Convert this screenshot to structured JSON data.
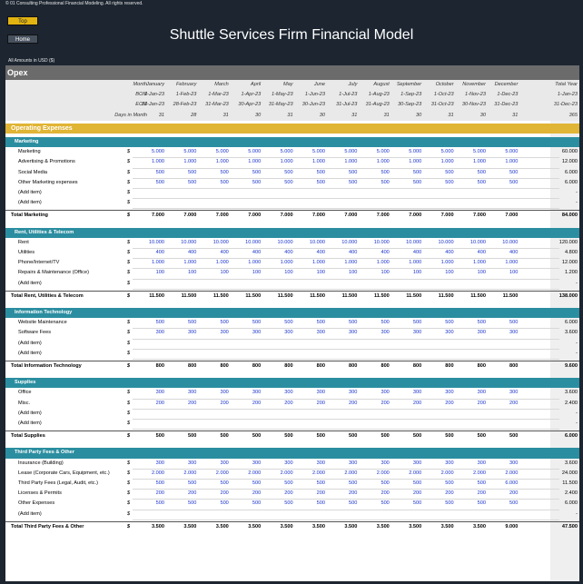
{
  "copyright": "© 01 Consulting Professional Financial Modeling. All rights reserved.",
  "nav": {
    "top": "Top",
    "home": "Home"
  },
  "title": "Shuttle Services Firm Financial Model",
  "amounts_note": "All Amounts in   USD ($)",
  "sheet_title": "Opex",
  "header": {
    "labels": [
      "Month",
      "BOM",
      "EOM",
      "Days in Month"
    ],
    "months": [
      "January",
      "February",
      "March",
      "April",
      "May",
      "June",
      "July",
      "August",
      "September",
      "October",
      "November",
      "December"
    ],
    "bom": [
      "1-Jan-23",
      "1-Feb-23",
      "1-Mar-23",
      "1-Apr-23",
      "1-May-23",
      "1-Jun-23",
      "1-Jul-23",
      "1-Aug-23",
      "1-Sep-23",
      "1-Oct-23",
      "1-Nov-23",
      "1-Dec-23"
    ],
    "eom": [
      "31-Jan-23",
      "28-Feb-23",
      "31-Mar-23",
      "30-Apr-23",
      "31-May-23",
      "30-Jun-23",
      "31-Jul-23",
      "31-Aug-23",
      "30-Sep-23",
      "31-Oct-23",
      "30-Nov-23",
      "31-Dec-23"
    ],
    "days": [
      "31",
      "28",
      "31",
      "30",
      "31",
      "30",
      "31",
      "31",
      "30",
      "31",
      "30",
      "31"
    ],
    "total_label": "Total Year",
    "total_bom": "1-Jan-23",
    "total_eom": "31-Dec-23",
    "total_days": "365"
  },
  "section_title": "Operating Expenses",
  "groups": [
    {
      "name": "Marketing",
      "items": [
        {
          "label": "Marketing",
          "unit": "$",
          "values": [
            "5.000",
            "5.000",
            "5.000",
            "5.000",
            "5.000",
            "5.000",
            "5.000",
            "5.000",
            "5.000",
            "5.000",
            "5.000",
            "5.000"
          ],
          "total": "60.000"
        },
        {
          "label": "Advertising & Promotions",
          "unit": "$",
          "values": [
            "1.000",
            "1.000",
            "1.000",
            "1.000",
            "1.000",
            "1.000",
            "1.000",
            "1.000",
            "1.000",
            "1.000",
            "1.000",
            "1.000"
          ],
          "total": "12.000"
        },
        {
          "label": "Social Media",
          "unit": "$",
          "values": [
            "500",
            "500",
            "500",
            "500",
            "500",
            "500",
            "500",
            "500",
            "500",
            "500",
            "500",
            "500"
          ],
          "total": "6.000"
        },
        {
          "label": "Other Marketing expenses",
          "unit": "$",
          "values": [
            "500",
            "500",
            "500",
            "500",
            "500",
            "500",
            "500",
            "500",
            "500",
            "500",
            "500",
            "500"
          ],
          "total": "6.000"
        },
        {
          "label": "(Add item)",
          "unit": "$",
          "values": [
            "",
            "",
            "",
            "",
            "",
            "",
            "",
            "",
            "",
            "",
            "",
            ""
          ],
          "total": "-"
        },
        {
          "label": "(Add item)",
          "unit": "$",
          "values": [
            "",
            "",
            "",
            "",
            "",
            "",
            "",
            "",
            "",
            "",
            "",
            ""
          ],
          "total": "-"
        }
      ],
      "total": {
        "label": "Total Marketing",
        "unit": "$",
        "values": [
          "7.000",
          "7.000",
          "7.000",
          "7.000",
          "7.000",
          "7.000",
          "7.000",
          "7.000",
          "7.000",
          "7.000",
          "7.000",
          "7.000"
        ],
        "total": "84.000"
      }
    },
    {
      "name": "Rent, Utilities & Telecom",
      "items": [
        {
          "label": "Rent",
          "unit": "$",
          "values": [
            "10.000",
            "10.000",
            "10.000",
            "10.000",
            "10.000",
            "10.000",
            "10.000",
            "10.000",
            "10.000",
            "10.000",
            "10.000",
            "10.000"
          ],
          "total": "120.000"
        },
        {
          "label": "Utilities",
          "unit": "$",
          "values": [
            "400",
            "400",
            "400",
            "400",
            "400",
            "400",
            "400",
            "400",
            "400",
            "400",
            "400",
            "400"
          ],
          "total": "4.800"
        },
        {
          "label": "Phone/Internet/TV",
          "unit": "$",
          "values": [
            "1.000",
            "1.000",
            "1.000",
            "1.000",
            "1.000",
            "1.000",
            "1.000",
            "1.000",
            "1.000",
            "1.000",
            "1.000",
            "1.000"
          ],
          "total": "12.000"
        },
        {
          "label": "Repairs & Maintenance (Office)",
          "unit": "$",
          "values": [
            "100",
            "100",
            "100",
            "100",
            "100",
            "100",
            "100",
            "100",
            "100",
            "100",
            "100",
            "100"
          ],
          "total": "1.200"
        },
        {
          "label": "(Add item)",
          "unit": "$",
          "values": [
            "",
            "",
            "",
            "",
            "",
            "",
            "",
            "",
            "",
            "",
            "",
            ""
          ],
          "total": "-"
        }
      ],
      "total": {
        "label": "Total Rent, Utilities & Telecom",
        "unit": "$",
        "values": [
          "11.500",
          "11.500",
          "11.500",
          "11.500",
          "11.500",
          "11.500",
          "11.500",
          "11.500",
          "11.500",
          "11.500",
          "11.500",
          "11.500"
        ],
        "total": "138.000"
      }
    },
    {
      "name": "Information Technology",
      "items": [
        {
          "label": "Website Maintenance",
          "unit": "$",
          "values": [
            "500",
            "500",
            "500",
            "500",
            "500",
            "500",
            "500",
            "500",
            "500",
            "500",
            "500",
            "500"
          ],
          "total": "6.000"
        },
        {
          "label": "Software Fees",
          "unit": "$",
          "values": [
            "300",
            "300",
            "300",
            "300",
            "300",
            "300",
            "300",
            "300",
            "300",
            "300",
            "300",
            "300"
          ],
          "total": "3.600"
        },
        {
          "label": "(Add item)",
          "unit": "$",
          "values": [
            "",
            "",
            "",
            "",
            "",
            "",
            "",
            "",
            "",
            "",
            "",
            ""
          ],
          "total": "-"
        },
        {
          "label": "(Add item)",
          "unit": "$",
          "values": [
            "",
            "",
            "",
            "",
            "",
            "",
            "",
            "",
            "",
            "",
            "",
            ""
          ],
          "total": "-"
        }
      ],
      "total": {
        "label": "Total Information Technology",
        "unit": "$",
        "values": [
          "800",
          "800",
          "800",
          "800",
          "800",
          "800",
          "800",
          "800",
          "800",
          "800",
          "800",
          "800"
        ],
        "total": "9.600"
      }
    },
    {
      "name": "Supplies",
      "items": [
        {
          "label": "Office",
          "unit": "$",
          "values": [
            "300",
            "300",
            "300",
            "300",
            "300",
            "300",
            "300",
            "300",
            "300",
            "300",
            "300",
            "300"
          ],
          "total": "3.600"
        },
        {
          "label": "Misc.",
          "unit": "$",
          "values": [
            "200",
            "200",
            "200",
            "200",
            "200",
            "200",
            "200",
            "200",
            "200",
            "200",
            "200",
            "200"
          ],
          "total": "2.400"
        },
        {
          "label": "(Add item)",
          "unit": "$",
          "values": [
            "",
            "",
            "",
            "",
            "",
            "",
            "",
            "",
            "",
            "",
            "",
            ""
          ],
          "total": "-"
        },
        {
          "label": "(Add item)",
          "unit": "$",
          "values": [
            "",
            "",
            "",
            "",
            "",
            "",
            "",
            "",
            "",
            "",
            "",
            ""
          ],
          "total": "-"
        }
      ],
      "total": {
        "label": "Total Supplies",
        "unit": "$",
        "values": [
          "500",
          "500",
          "500",
          "500",
          "500",
          "500",
          "500",
          "500",
          "500",
          "500",
          "500",
          "500"
        ],
        "total": "6.000"
      }
    },
    {
      "name": "Third Party Fees & Other",
      "items": [
        {
          "label": "Insurance (Building)",
          "unit": "$",
          "values": [
            "300",
            "300",
            "300",
            "300",
            "300",
            "300",
            "300",
            "300",
            "300",
            "300",
            "300",
            "300"
          ],
          "total": "3.600"
        },
        {
          "label": "Lease (Corporate Cars, Equipment, etc.)",
          "unit": "$",
          "values": [
            "2.000",
            "2.000",
            "2.000",
            "2.000",
            "2.000",
            "2.000",
            "2.000",
            "2.000",
            "2.000",
            "2.000",
            "2.000",
            "2.000"
          ],
          "total": "24.000"
        },
        {
          "label": "Third Party Fees (Legal, Audit, etc.)",
          "unit": "$",
          "values": [
            "500",
            "500",
            "500",
            "500",
            "500",
            "500",
            "500",
            "500",
            "500",
            "500",
            "500",
            "6.000"
          ],
          "total": "11.500"
        },
        {
          "label": "Licenses & Permits",
          "unit": "$",
          "values": [
            "200",
            "200",
            "200",
            "200",
            "200",
            "200",
            "200",
            "200",
            "200",
            "200",
            "200",
            "200"
          ],
          "total": "2.400"
        },
        {
          "label": "Other Expenses",
          "unit": "$",
          "values": [
            "500",
            "500",
            "500",
            "500",
            "500",
            "500",
            "500",
            "500",
            "500",
            "500",
            "500",
            "500"
          ],
          "total": "6.000"
        },
        {
          "label": "(Add item)",
          "unit": "$",
          "values": [
            "",
            "",
            "",
            "",
            "",
            "",
            "",
            "",
            "",
            "",
            "",
            ""
          ],
          "total": "-"
        }
      ],
      "total": {
        "label": "Total Third Party Fees & Other",
        "unit": "$",
        "values": [
          "3.500",
          "3.500",
          "3.500",
          "3.500",
          "3.500",
          "3.500",
          "3.500",
          "3.500",
          "3.500",
          "3.500",
          "3.500",
          "9.000"
        ],
        "total": "47.500"
      }
    }
  ]
}
